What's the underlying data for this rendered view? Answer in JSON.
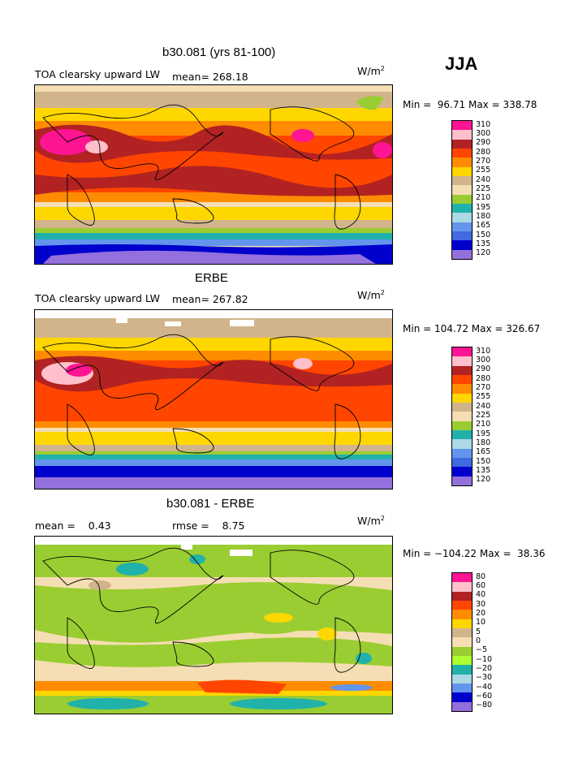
{
  "season": "JJA",
  "units_label": "W/m",
  "units_sup": "2",
  "panels": [
    {
      "title": "b30.081 (yrs 81-100)",
      "left_label": "TOA clearsky upward LW",
      "stat_label": "mean= 268.18",
      "minmax": "Min =  96.71 Max = 338.78",
      "levels": [
        "310",
        "300",
        "290",
        "280",
        "270",
        "255",
        "240",
        "225",
        "210",
        "195",
        "180",
        "165",
        "150",
        "135",
        "120"
      ],
      "colors": [
        "#ff1493",
        "#ffc0cb",
        "#b22222",
        "#ff4500",
        "#ff8c00",
        "#ffd700",
        "#d2b48c",
        "#f5deb3",
        "#9acd32",
        "#20b2aa",
        "#add8e6",
        "#6495ed",
        "#4169e1",
        "#0000cd",
        "#9370db"
      ]
    },
    {
      "title": "ERBE",
      "left_label": "TOA clearsky upward LW",
      "stat_label": "mean= 267.82",
      "minmax": "Min = 104.72 Max = 326.67",
      "levels": [
        "310",
        "300",
        "290",
        "280",
        "270",
        "255",
        "240",
        "225",
        "210",
        "195",
        "180",
        "165",
        "150",
        "135",
        "120"
      ],
      "colors": [
        "#ff1493",
        "#ffc0cb",
        "#b22222",
        "#ff4500",
        "#ff8c00",
        "#ffd700",
        "#d2b48c",
        "#f5deb3",
        "#9acd32",
        "#20b2aa",
        "#add8e6",
        "#6495ed",
        "#4169e1",
        "#0000cd",
        "#9370db"
      ]
    },
    {
      "title": "b30.081 - ERBE",
      "left_label": "mean =    0.43",
      "stat_label": "rmse =    8.75",
      "minmax": "Min = −104.22 Max =  38.36",
      "levels": [
        "80",
        "60",
        "40",
        "30",
        "20",
        "10",
        "5",
        "0",
        "−5",
        "−10",
        "−20",
        "−30",
        "−40",
        "−60",
        "−80"
      ],
      "colors": [
        "#ff1493",
        "#ffc0cb",
        "#b22222",
        "#ff4500",
        "#ff8c00",
        "#ffd700",
        "#d2b48c",
        "#f5deb3",
        "#9acd32",
        "#adff2f",
        "#20b2aa",
        "#add8e6",
        "#6495ed",
        "#0000cd",
        "#9370db"
      ]
    }
  ]
}
